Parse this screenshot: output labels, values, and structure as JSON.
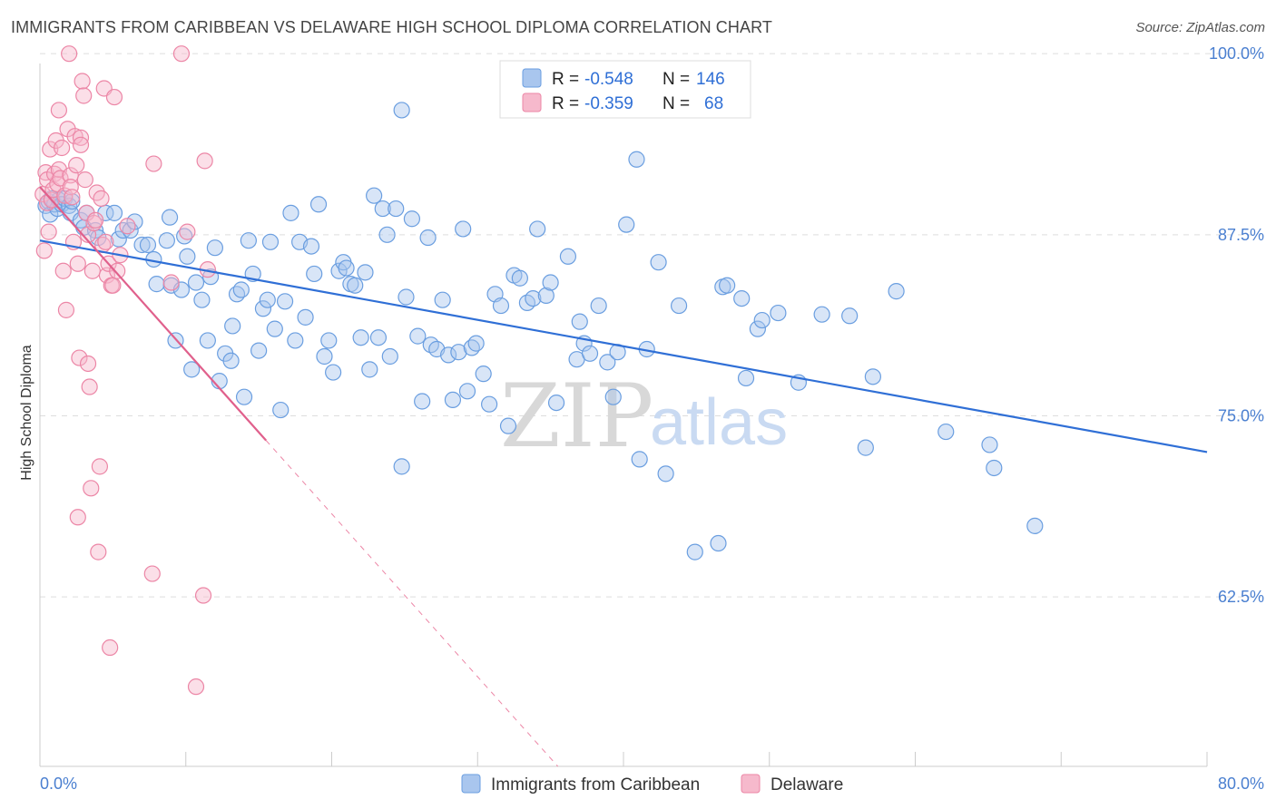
{
  "title": "IMMIGRANTS FROM CARIBBEAN VS DELAWARE HIGH SCHOOL DIPLOMA CORRELATION CHART",
  "source": "Source: ZipAtlas.com",
  "watermark": {
    "zip": "ZIP",
    "atlas": "atlas"
  },
  "colors": {
    "blue_fill": "#a9c6ee",
    "blue_stroke": "#6a9ee0",
    "blue_line": "#2f6fd6",
    "pink_fill": "#f6b9cc",
    "pink_stroke": "#ec86a6",
    "pink_line": "#e0608c",
    "grid": "#dddddd",
    "tick_label": "#4a7fd0"
  },
  "legend": {
    "rows": [
      {
        "r_label": "R =",
        "r_value": "-0.548",
        "n_label": "N =",
        "n_value": "146"
      },
      {
        "r_label": "R =",
        "r_value": "-0.359",
        "n_label": "N =",
        "n_value": "68"
      }
    ]
  },
  "chart_data": {
    "type": "scatter",
    "xlabel": "",
    "ylabel": "High School Diploma",
    "xlim": [
      0,
      80
    ],
    "ylim": [
      50.8,
      101.2
    ],
    "x_tick_labels": [
      "0.0%",
      "80.0%"
    ],
    "y_ticks": [
      62.5,
      75.0,
      87.5,
      100.0
    ],
    "y_tick_labels": [
      "62.5%",
      "75.0%",
      "87.5%",
      "100.0%"
    ],
    "grid": true,
    "series": [
      {
        "name": "Immigrants from Caribbean",
        "color": "blue",
        "trend": {
          "x0": 0,
          "y0": 87.1,
          "x1": 80,
          "y1": 72.5
        },
        "points": [
          [
            0.4,
            89.5
          ],
          [
            0.6,
            89.8
          ],
          [
            0.7,
            88.9
          ],
          [
            0.8,
            90.0
          ],
          [
            1.0,
            89.6
          ],
          [
            1.2,
            89.3
          ],
          [
            1.3,
            89.9
          ],
          [
            1.5,
            89.6
          ],
          [
            1.7,
            90.0
          ],
          [
            2.0,
            89.5
          ],
          [
            2.1,
            89.0
          ],
          [
            2.2,
            89.8
          ],
          [
            2.8,
            88.5
          ],
          [
            3.0,
            88.0
          ],
          [
            3.2,
            89.0
          ],
          [
            3.8,
            87.8
          ],
          [
            4.0,
            87.3
          ],
          [
            4.5,
            89.0
          ],
          [
            5.1,
            89.0
          ],
          [
            5.4,
            87.2
          ],
          [
            5.7,
            87.8
          ],
          [
            6.2,
            87.8
          ],
          [
            6.5,
            88.4
          ],
          [
            7.0,
            86.8
          ],
          [
            7.4,
            86.8
          ],
          [
            7.8,
            85.8
          ],
          [
            8.0,
            84.1
          ],
          [
            8.7,
            87.1
          ],
          [
            8.9,
            88.7
          ],
          [
            9.0,
            84.0
          ],
          [
            9.3,
            80.2
          ],
          [
            9.7,
            83.7
          ],
          [
            9.9,
            87.4
          ],
          [
            10.1,
            86.0
          ],
          [
            10.4,
            78.2
          ],
          [
            10.7,
            84.2
          ],
          [
            11.1,
            83.0
          ],
          [
            11.5,
            80.2
          ],
          [
            11.7,
            84.6
          ],
          [
            12.0,
            86.6
          ],
          [
            12.3,
            77.4
          ],
          [
            12.7,
            79.3
          ],
          [
            13.1,
            78.8
          ],
          [
            13.2,
            81.2
          ],
          [
            13.5,
            83.4
          ],
          [
            13.8,
            83.7
          ],
          [
            14.0,
            76.3
          ],
          [
            14.3,
            87.1
          ],
          [
            14.6,
            84.8
          ],
          [
            15.0,
            79.5
          ],
          [
            15.3,
            82.4
          ],
          [
            15.6,
            83.0
          ],
          [
            15.8,
            87.0
          ],
          [
            16.1,
            81.0
          ],
          [
            16.5,
            75.4
          ],
          [
            16.8,
            82.9
          ],
          [
            17.2,
            89.0
          ],
          [
            17.5,
            80.2
          ],
          [
            17.8,
            87.0
          ],
          [
            18.2,
            81.8
          ],
          [
            18.6,
            86.7
          ],
          [
            18.8,
            84.8
          ],
          [
            19.1,
            89.6
          ],
          [
            19.5,
            79.1
          ],
          [
            19.8,
            80.2
          ],
          [
            20.1,
            78.0
          ],
          [
            20.5,
            85.0
          ],
          [
            20.8,
            85.6
          ],
          [
            21.0,
            85.2
          ],
          [
            21.3,
            84.1
          ],
          [
            21.6,
            84.0
          ],
          [
            22.0,
            80.4
          ],
          [
            22.3,
            84.9
          ],
          [
            22.6,
            78.2
          ],
          [
            22.9,
            90.2
          ],
          [
            23.2,
            80.4
          ],
          [
            23.5,
            89.3
          ],
          [
            23.8,
            87.5
          ],
          [
            24.0,
            79.1
          ],
          [
            24.4,
            89.3
          ],
          [
            24.8,
            71.5
          ],
          [
            25.1,
            83.2
          ],
          [
            25.5,
            88.6
          ],
          [
            25.9,
            80.5
          ],
          [
            26.2,
            76.0
          ],
          [
            26.6,
            87.3
          ],
          [
            26.8,
            79.9
          ],
          [
            27.2,
            79.6
          ],
          [
            27.6,
            83.0
          ],
          [
            28.0,
            79.2
          ],
          [
            28.3,
            76.1
          ],
          [
            28.7,
            79.4
          ],
          [
            29.0,
            87.9
          ],
          [
            29.3,
            76.7
          ],
          [
            29.6,
            79.7
          ],
          [
            29.9,
            80.0
          ],
          [
            30.4,
            77.9
          ],
          [
            30.8,
            75.8
          ],
          [
            31.2,
            83.4
          ],
          [
            31.6,
            82.6
          ],
          [
            32.1,
            74.3
          ],
          [
            32.5,
            84.7
          ],
          [
            32.9,
            84.5
          ],
          [
            33.4,
            82.8
          ],
          [
            33.8,
            83.1
          ],
          [
            34.1,
            87.9
          ],
          [
            34.7,
            83.3
          ],
          [
            35.0,
            84.2
          ],
          [
            35.4,
            75.9
          ],
          [
            36.2,
            86.0
          ],
          [
            37.0,
            81.5
          ],
          [
            36.8,
            78.9
          ],
          [
            37.3,
            80.0
          ],
          [
            37.7,
            79.3
          ],
          [
            38.3,
            82.6
          ],
          [
            38.9,
            78.7
          ],
          [
            39.3,
            76.3
          ],
          [
            39.6,
            79.4
          ],
          [
            40.2,
            88.2
          ],
          [
            40.9,
            92.7
          ],
          [
            41.1,
            72.0
          ],
          [
            41.6,
            79.6
          ],
          [
            42.4,
            85.6
          ],
          [
            42.9,
            71.0
          ],
          [
            43.8,
            82.6
          ],
          [
            44.9,
            65.6
          ],
          [
            46.5,
            66.2
          ],
          [
            46.8,
            83.9
          ],
          [
            47.1,
            84.0
          ],
          [
            48.1,
            83.1
          ],
          [
            48.4,
            77.6
          ],
          [
            49.2,
            81.0
          ],
          [
            49.5,
            81.6
          ],
          [
            50.6,
            82.1
          ],
          [
            52.0,
            77.3
          ],
          [
            53.6,
            82.0
          ],
          [
            55.5,
            81.9
          ],
          [
            56.6,
            72.8
          ],
          [
            57.1,
            77.7
          ],
          [
            58.7,
            83.6
          ],
          [
            62.1,
            73.9
          ],
          [
            65.1,
            73.0
          ],
          [
            65.4,
            71.4
          ],
          [
            68.2,
            67.4
          ],
          [
            24.8,
            96.1
          ]
        ]
      },
      {
        "name": "Delaware",
        "color": "pink",
        "trend": {
          "x0": 0,
          "y0": 90.8,
          "x1": 15.5,
          "y1": 73.3
        },
        "trend_dashed": {
          "x0": 15.5,
          "y0": 73.3,
          "x1": 35.5,
          "y1": 50.8
        },
        "points": [
          [
            0.2,
            90.3
          ],
          [
            0.3,
            86.4
          ],
          [
            0.4,
            91.8
          ],
          [
            0.5,
            91.3
          ],
          [
            0.5,
            89.7
          ],
          [
            0.6,
            87.7
          ],
          [
            0.7,
            93.4
          ],
          [
            0.8,
            89.9
          ],
          [
            0.9,
            90.6
          ],
          [
            1.0,
            91.7
          ],
          [
            1.1,
            94.0
          ],
          [
            1.2,
            91.0
          ],
          [
            1.3,
            92.0
          ],
          [
            1.3,
            96.1
          ],
          [
            1.4,
            91.4
          ],
          [
            1.5,
            93.5
          ],
          [
            1.6,
            85.0
          ],
          [
            1.7,
            90.2
          ],
          [
            1.8,
            82.3
          ],
          [
            1.9,
            94.8
          ],
          [
            2.0,
            100.0
          ],
          [
            2.1,
            91.6
          ],
          [
            2.1,
            90.8
          ],
          [
            2.2,
            90.1
          ],
          [
            2.3,
            87.0
          ],
          [
            2.4,
            94.3
          ],
          [
            2.5,
            92.3
          ],
          [
            2.6,
            68.0
          ],
          [
            2.6,
            85.5
          ],
          [
            2.7,
            79.0
          ],
          [
            2.8,
            94.2
          ],
          [
            2.8,
            93.7
          ],
          [
            2.9,
            98.1
          ],
          [
            3.0,
            97.1
          ],
          [
            3.1,
            91.3
          ],
          [
            3.2,
            89.0
          ],
          [
            3.3,
            87.5
          ],
          [
            3.3,
            78.6
          ],
          [
            3.4,
            77.0
          ],
          [
            3.5,
            70.0
          ],
          [
            3.6,
            85.0
          ],
          [
            3.7,
            88.3
          ],
          [
            3.8,
            88.5
          ],
          [
            3.9,
            90.4
          ],
          [
            4.0,
            65.6
          ],
          [
            4.1,
            71.5
          ],
          [
            4.2,
            90.0
          ],
          [
            4.3,
            86.8
          ],
          [
            4.4,
            97.6
          ],
          [
            4.5,
            87.0
          ],
          [
            4.6,
            84.7
          ],
          [
            4.7,
            85.5
          ],
          [
            4.8,
            59.0
          ],
          [
            4.9,
            84.0
          ],
          [
            5.0,
            84.0
          ],
          [
            5.1,
            97.0
          ],
          [
            5.3,
            85.0
          ],
          [
            5.5,
            86.1
          ],
          [
            6.0,
            88.1
          ],
          [
            7.7,
            64.1
          ],
          [
            7.8,
            92.4
          ],
          [
            9.0,
            84.2
          ],
          [
            9.7,
            100.0
          ],
          [
            10.1,
            87.7
          ],
          [
            11.2,
            62.6
          ],
          [
            11.3,
            92.6
          ],
          [
            11.5,
            85.1
          ],
          [
            10.7,
            56.3
          ]
        ]
      }
    ]
  },
  "bottom_legend": [
    {
      "label": "Immigrants from Caribbean"
    },
    {
      "label": "Delaware"
    }
  ]
}
